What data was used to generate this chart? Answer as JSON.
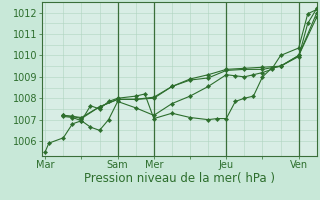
{
  "background_color": "#c8e8d8",
  "grid_color": "#b0d4c0",
  "plot_bg": "#d8ede5",
  "line_color": "#2d6e2d",
  "marker_color": "#2d6e2d",
  "xlabel": "Pression niveau de la mer( hPa )",
  "xtick_labels": [
    "Mar",
    "",
    "Sam",
    "Mer",
    "",
    "Jeu",
    "",
    "Ven"
  ],
  "xtick_positions": [
    0,
    1,
    2,
    3,
    4,
    5,
    6,
    7
  ],
  "ytick_labels": [
    "1006",
    "1007",
    "1008",
    "1009",
    "1010",
    "1011",
    "1012"
  ],
  "ylim": [
    1005.3,
    1012.5
  ],
  "xlim": [
    -0.1,
    7.5
  ],
  "series1_x": [
    0.0,
    0.1,
    0.5,
    0.75,
    1.0,
    1.25,
    1.5,
    1.75,
    2.0,
    2.5,
    3.0,
    3.5,
    4.0,
    4.5,
    5.0,
    5.25,
    5.5,
    5.75,
    6.0,
    6.25,
    6.5,
    7.0,
    7.25,
    7.5
  ],
  "series1_y": [
    1005.5,
    1005.9,
    1006.15,
    1006.8,
    1006.95,
    1006.65,
    1006.5,
    1007.0,
    1007.85,
    1007.55,
    1007.2,
    1007.75,
    1008.1,
    1008.55,
    1009.1,
    1009.05,
    1009.0,
    1009.1,
    1009.2,
    1009.35,
    1010.0,
    1010.35,
    1011.95,
    1012.15
  ],
  "series2_x": [
    0.5,
    0.75,
    1.0,
    1.25,
    1.5,
    1.75,
    2.0,
    2.5,
    2.75,
    3.0,
    3.5,
    4.0,
    4.5,
    4.75,
    5.0,
    5.25,
    5.5,
    5.75,
    6.0,
    6.25,
    6.5,
    7.0,
    7.25,
    7.5
  ],
  "series2_y": [
    1007.15,
    1007.1,
    1006.95,
    1007.65,
    1007.5,
    1007.85,
    1008.0,
    1008.1,
    1008.2,
    1007.05,
    1007.3,
    1007.1,
    1007.0,
    1007.05,
    1007.05,
    1007.85,
    1008.0,
    1008.1,
    1009.0,
    1009.4,
    1009.5,
    1009.95,
    1011.5,
    1012.2
  ],
  "series3_x": [
    0.5,
    0.75,
    1.0,
    1.5,
    2.0,
    2.5,
    3.0,
    3.5,
    4.0,
    4.5,
    5.0,
    5.5,
    6.0,
    6.5,
    7.0,
    7.5
  ],
  "series3_y": [
    1007.2,
    1007.15,
    1007.05,
    1007.6,
    1007.95,
    1007.95,
    1008.05,
    1008.55,
    1008.85,
    1008.95,
    1009.3,
    1009.35,
    1009.35,
    1009.5,
    1010.0,
    1011.8
  ],
  "series4_x": [
    0.5,
    1.0,
    1.5,
    2.0,
    2.5,
    3.0,
    3.5,
    4.0,
    4.5,
    5.0,
    5.5,
    6.0,
    6.5,
    7.0,
    7.5
  ],
  "series4_y": [
    1007.2,
    1007.1,
    1007.6,
    1007.95,
    1007.95,
    1008.0,
    1008.55,
    1008.9,
    1009.1,
    1009.35,
    1009.4,
    1009.45,
    1009.5,
    1010.0,
    1012.0
  ],
  "vlines_x": [
    2,
    3,
    5,
    7
  ],
  "vline_color": "#3a6e3a",
  "fontsize_xlabel": 8.5,
  "fontsize_ytick": 7,
  "fontsize_xtick": 7
}
